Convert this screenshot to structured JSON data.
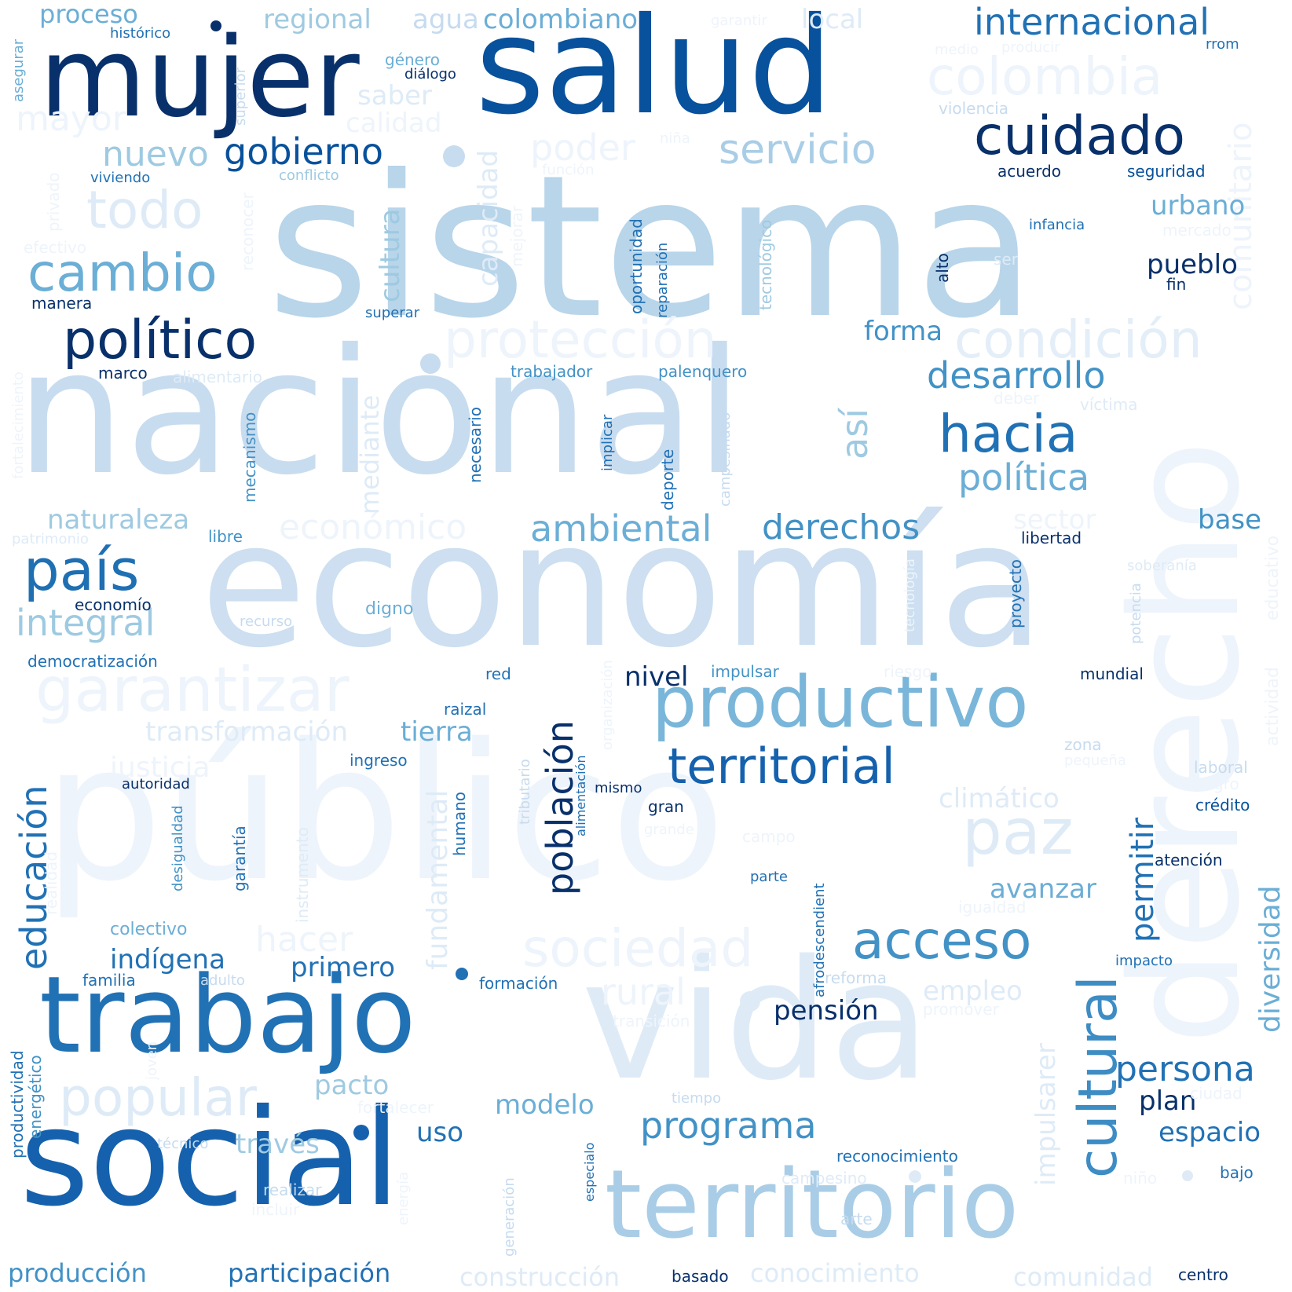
{
  "palette": {
    "darkest": "#08306b",
    "dark": "#08519c",
    "mid_dark": "#2171b5",
    "mid": "#4292c6",
    "light_mid": "#6baed6",
    "light": "#9ecae1",
    "lighter": "#c6dbef",
    "lightest": "#deebf7",
    "faint": "#eef4fb",
    "background": "#ffffff"
  },
  "words": [
    {
      "text": "sistema",
      "weight": 1.0,
      "color": "#b8d5ea"
    },
    {
      "text": "nacional",
      "weight": 0.95,
      "color": "#c8dcef"
    },
    {
      "text": "economía",
      "weight": 0.92,
      "color": "#cddff0"
    },
    {
      "text": "público",
      "weight": 0.9,
      "color": "#eef4fb"
    },
    {
      "text": "vida",
      "weight": 0.85,
      "color": "#deebf7"
    },
    {
      "text": "derecho",
      "weight": 0.82,
      "color": "#eef4fb"
    },
    {
      "text": "salud",
      "weight": 0.8,
      "color": "#08519c"
    },
    {
      "text": "social",
      "weight": 0.78,
      "color": "#1561ad"
    },
    {
      "text": "mujer",
      "weight": 0.7,
      "color": "#08306b"
    },
    {
      "text": "territorio",
      "weight": 0.68,
      "color": "#a9cde6"
    },
    {
      "text": "trabajo",
      "weight": 0.66,
      "color": "#2171b5"
    },
    {
      "text": "productivo",
      "weight": 0.5,
      "color": "#7ab6d9"
    },
    {
      "text": "garantizar",
      "weight": 0.45,
      "color": "#eef4fb"
    },
    {
      "text": "colombia",
      "weight": 0.4,
      "color": "#eef4fb"
    },
    {
      "text": "protección",
      "weight": 0.4,
      "color": "#eef4fb"
    },
    {
      "text": "condición",
      "weight": 0.4,
      "color": "#e3eef8"
    },
    {
      "text": "popular",
      "weight": 0.4,
      "color": "#deebf7"
    },
    {
      "text": "sociedad",
      "weight": 0.4,
      "color": "#eef4fb"
    },
    {
      "text": "territorial",
      "weight": 0.38,
      "color": "#1561ad"
    },
    {
      "text": "cuidado",
      "weight": 0.35,
      "color": "#08306b"
    },
    {
      "text": "político",
      "weight": 0.35,
      "color": "#08306b"
    },
    {
      "text": "cultural",
      "weight": 0.35,
      "color": "#3d8cc4"
    },
    {
      "text": "cambio",
      "weight": 0.35,
      "color": "#6baed6"
    },
    {
      "text": "país",
      "weight": 0.35,
      "color": "#1f6fb3"
    },
    {
      "text": "paz",
      "weight": 0.35,
      "color": "#deebf7"
    },
    {
      "text": "todo",
      "weight": 0.33,
      "color": "#deebf7"
    },
    {
      "text": "acceso",
      "weight": 0.33,
      "color": "#4292c6"
    },
    {
      "text": "hacia",
      "weight": 0.33,
      "color": "#2171b5"
    },
    {
      "text": "servicio",
      "weight": 0.3,
      "color": "#a9cde6"
    },
    {
      "text": "comunitario",
      "weight": 0.25,
      "color": "#eef4fb"
    },
    {
      "text": "educación",
      "weight": 0.25,
      "color": "#2171b5"
    },
    {
      "text": "población",
      "weight": 0.25,
      "color": "#08306b"
    },
    {
      "text": "internacional",
      "weight": 0.25,
      "color": "#2171b5"
    },
    {
      "text": "desarrollo",
      "weight": 0.25,
      "color": "#4292c6"
    },
    {
      "text": "política",
      "weight": 0.25,
      "color": "#6baed6"
    },
    {
      "text": "ambiental",
      "weight": 0.25,
      "color": "#6baed6"
    },
    {
      "text": "derechos",
      "weight": 0.25,
      "color": "#4292c6"
    },
    {
      "text": "gobierno",
      "weight": 0.25,
      "color": "#08519c"
    },
    {
      "text": "económico",
      "weight": 0.25,
      "color": "#eef4fb"
    },
    {
      "text": "programa",
      "weight": 0.25,
      "color": "#4292c6"
    },
    {
      "text": "persona",
      "weight": 0.22,
      "color": "#2171b5"
    },
    {
      "text": "integral",
      "weight": 0.22,
      "color": "#9ecae1"
    },
    {
      "text": "nuevo",
      "weight": 0.22,
      "color": "#9ecae1"
    },
    {
      "text": "poder",
      "weight": 0.22,
      "color": "#eef4fb"
    },
    {
      "text": "rural",
      "weight": 0.22,
      "color": "#eef4fb"
    },
    {
      "text": "hacer",
      "weight": 0.22,
      "color": "#eef4fb"
    },
    {
      "text": "así",
      "weight": 0.22,
      "color": "#9ecae1"
    },
    {
      "text": "permitir",
      "weight": 0.22,
      "color": "#2171b5"
    },
    {
      "text": "diversidad",
      "weight": 0.2,
      "color": "#6baed6"
    },
    {
      "text": "mayor",
      "weight": 0.2,
      "color": "#eef4fb"
    },
    {
      "text": "fundamental",
      "weight": 0.2,
      "color": "#deebf7"
    },
    {
      "text": "impulsarer",
      "weight": 0.2,
      "color": "#deebf7"
    },
    {
      "text": "naturaleza",
      "weight": 0.2,
      "color": "#9ecae1"
    },
    {
      "text": "transformación",
      "weight": 0.2,
      "color": "#deebf7"
    },
    {
      "text": "tierra",
      "weight": 0.2,
      "color": "#6baed6"
    },
    {
      "text": "justicia",
      "weight": 0.2,
      "color": "#eef4fb"
    },
    {
      "text": "cultura",
      "weight": 0.2,
      "color": "#9ecae1"
    },
    {
      "text": "capacidad",
      "weight": 0.2,
      "color": "#deebf7"
    },
    {
      "text": "mediante",
      "weight": 0.2,
      "color": "#deebf7"
    },
    {
      "text": "climático",
      "weight": 0.2,
      "color": "#deebf7"
    },
    {
      "text": "regional",
      "weight": 0.2,
      "color": "#9ecae1"
    },
    {
      "text": "agua",
      "weight": 0.2,
      "color": "#c6dbef"
    },
    {
      "text": "colombiano",
      "weight": 0.2,
      "color": "#6baed6"
    },
    {
      "text": "local",
      "weight": 0.2,
      "color": "#deebf7"
    },
    {
      "text": "proceso",
      "weight": 0.2,
      "color": "#6baed6"
    },
    {
      "text": "saber",
      "weight": 0.2,
      "color": "#deebf7"
    },
    {
      "text": "calidad",
      "weight": 0.2,
      "color": "#eef4fb"
    },
    {
      "text": "urbano",
      "weight": 0.2,
      "color": "#6baed6"
    },
    {
      "text": "pueblo",
      "weight": 0.2,
      "color": "#08306b"
    },
    {
      "text": "forma",
      "weight": 0.2,
      "color": "#4292c6"
    },
    {
      "text": "sector",
      "weight": 0.2,
      "color": "#eef4fb"
    },
    {
      "text": "base",
      "weight": 0.2,
      "color": "#4292c6"
    },
    {
      "text": "nivel",
      "weight": 0.2,
      "color": "#08306b"
    },
    {
      "text": "indígena",
      "weight": 0.2,
      "color": "#2171b5"
    },
    {
      "text": "primero",
      "weight": 0.2,
      "color": "#2171b5"
    },
    {
      "text": "pacto",
      "weight": 0.2,
      "color": "#9ecae1"
    },
    {
      "text": "modelo",
      "weight": 0.2,
      "color": "#6baed6"
    },
    {
      "text": "uso",
      "weight": 0.2,
      "color": "#2171b5"
    },
    {
      "text": "través",
      "weight": 0.2,
      "color": "#9ecae1"
    },
    {
      "text": "avanzar",
      "weight": 0.2,
      "color": "#6baed6"
    },
    {
      "text": "pensión",
      "weight": 0.2,
      "color": "#08306b"
    },
    {
      "text": "empleo",
      "weight": 0.2,
      "color": "#deebf7"
    },
    {
      "text": "plan",
      "weight": 0.2,
      "color": "#08306b"
    },
    {
      "text": "espacio",
      "weight": 0.2,
      "color": "#2171b5"
    },
    {
      "text": "producción",
      "weight": 0.2,
      "color": "#4292c6"
    },
    {
      "text": "participación",
      "weight": 0.2,
      "color": "#2171b5"
    },
    {
      "text": "construcción",
      "weight": 0.2,
      "color": "#deebf7"
    },
    {
      "text": "conocimiento",
      "weight": 0.2,
      "color": "#deebf7"
    },
    {
      "text": "comunidad",
      "weight": 0.2,
      "color": "#deebf7"
    },
    {
      "text": "educativo",
      "weight": 0.12,
      "color": "#eef4fb"
    },
    {
      "text": "actividad",
      "weight": 0.12,
      "color": "#eef4fb"
    },
    {
      "text": "violencia",
      "weight": 0.12,
      "color": "#c6dbef"
    },
    {
      "text": "acuerdo",
      "weight": 0.12,
      "color": "#08306b"
    },
    {
      "text": "seguridad",
      "weight": 0.12,
      "color": "#08519c"
    },
    {
      "text": "infancia",
      "weight": 0.12,
      "color": "#2171b5"
    },
    {
      "text": "mercado",
      "weight": 0.12,
      "color": "#eef4fb"
    },
    {
      "text": "ser",
      "weight": 0.12,
      "color": "#deebf7"
    },
    {
      "text": "fin",
      "weight": 0.12,
      "color": "#08306b"
    },
    {
      "text": "alto",
      "weight": 0.12,
      "color": "#08306b"
    },
    {
      "text": "tecnológico",
      "weight": 0.12,
      "color": "#9ecae1"
    },
    {
      "text": "reparación",
      "weight": 0.12,
      "color": "#2171b5"
    },
    {
      "text": "oportunidad",
      "weight": 0.12,
      "color": "#2171b5"
    },
    {
      "text": "niña",
      "weight": 0.12,
      "color": "#eef4fb"
    },
    {
      "text": "función",
      "weight": 0.12,
      "color": "#eef4fb"
    },
    {
      "text": "mejorar",
      "weight": 0.12,
      "color": "#eef4fb"
    },
    {
      "text": "garantir",
      "weight": 0.12,
      "color": "#eef4fb"
    },
    {
      "text": "medio",
      "weight": 0.12,
      "color": "#eef4fb"
    },
    {
      "text": "producir",
      "weight": 0.12,
      "color": "#eef4fb"
    },
    {
      "text": "rrom",
      "weight": 0.12,
      "color": "#2171b5"
    },
    {
      "text": "histórico",
      "weight": 0.12,
      "color": "#2171b5"
    },
    {
      "text": "género",
      "weight": 0.12,
      "color": "#6baed6"
    },
    {
      "text": "diálogo",
      "weight": 0.12,
      "color": "#08306b"
    },
    {
      "text": "asegurar",
      "weight": 0.12,
      "color": "#6baed6"
    },
    {
      "text": "superior",
      "weight": 0.12,
      "color": "#c6dbef"
    },
    {
      "text": "viviendo",
      "weight": 0.12,
      "color": "#2171b5"
    },
    {
      "text": "conflicto",
      "weight": 0.12,
      "color": "#9ecae1"
    },
    {
      "text": "privado",
      "weight": 0.12,
      "color": "#eef4fb"
    },
    {
      "text": "reconocer",
      "weight": 0.12,
      "color": "#eef4fb"
    },
    {
      "text": "efectivo",
      "weight": 0.12,
      "color": "#eef4fb"
    },
    {
      "text": "manera",
      "weight": 0.12,
      "color": "#08306b"
    },
    {
      "text": "superar",
      "weight": 0.12,
      "color": "#2171b5"
    },
    {
      "text": "marco",
      "weight": 0.12,
      "color": "#08306b"
    },
    {
      "text": "alimentario",
      "weight": 0.12,
      "color": "#deebf7"
    },
    {
      "text": "fortalecimiento",
      "weight": 0.12,
      "color": "#eef4fb"
    },
    {
      "text": "mecanismo",
      "weight": 0.12,
      "color": "#4292c6"
    },
    {
      "text": "necesario",
      "weight": 0.12,
      "color": "#2171b5"
    },
    {
      "text": "trabajador",
      "weight": 0.12,
      "color": "#4292c6"
    },
    {
      "text": "palenquero",
      "weight": 0.12,
      "color": "#4292c6"
    },
    {
      "text": "implicar",
      "weight": 0.12,
      "color": "#2171b5"
    },
    {
      "text": "deporte",
      "weight": 0.12,
      "color": "#2171b5"
    },
    {
      "text": "campesinado",
      "weight": 0.12,
      "color": "#c6dbef"
    },
    {
      "text": "deber",
      "weight": 0.12,
      "color": "#eef4fb"
    },
    {
      "text": "víctima",
      "weight": 0.12,
      "color": "#deebf7"
    },
    {
      "text": "proyecto",
      "weight": 0.12,
      "color": "#2171b5"
    },
    {
      "text": "libertad",
      "weight": 0.12,
      "color": "#08306b"
    },
    {
      "text": "soberanía",
      "weight": 0.12,
      "color": "#deebf7"
    },
    {
      "text": "potencia",
      "weight": 0.12,
      "color": "#c6dbef"
    },
    {
      "text": "patrimonio",
      "weight": 0.12,
      "color": "#deebf7"
    },
    {
      "text": "libre",
      "weight": 0.12,
      "color": "#4292c6"
    },
    {
      "text": "economío",
      "weight": 0.12,
      "color": "#08306b"
    },
    {
      "text": "recurso",
      "weight": 0.12,
      "color": "#c6dbef"
    },
    {
      "text": "digno",
      "weight": 0.12,
      "color": "#6baed6"
    },
    {
      "text": "democratización",
      "weight": 0.12,
      "color": "#2171b5"
    },
    {
      "text": "tecnología",
      "weight": 0.12,
      "color": "#eef4fb"
    },
    {
      "text": "organización",
      "weight": 0.12,
      "color": "#eef4fb"
    },
    {
      "text": "red",
      "weight": 0.12,
      "color": "#2171b5"
    },
    {
      "text": "impulsar",
      "weight": 0.12,
      "color": "#4292c6"
    },
    {
      "text": "riesgo",
      "weight": 0.12,
      "color": "#eef4fb"
    },
    {
      "text": "mundial",
      "weight": 0.12,
      "color": "#08306b"
    },
    {
      "text": "raizal",
      "weight": 0.12,
      "color": "#2171b5"
    },
    {
      "text": "ingreso",
      "weight": 0.12,
      "color": "#2171b5"
    },
    {
      "text": "tributario",
      "weight": 0.12,
      "color": "#c6dbef"
    },
    {
      "text": "alimentación",
      "weight": 0.12,
      "color": "#2171b5"
    },
    {
      "text": "zona",
      "weight": 0.12,
      "color": "#c6dbef"
    },
    {
      "text": "pequeña",
      "weight": 0.12,
      "color": "#eef4fb"
    },
    {
      "text": "laboral",
      "weight": 0.12,
      "color": "#c6dbef"
    },
    {
      "text": "negro",
      "weight": 0.12,
      "color": "#eef4fb"
    },
    {
      "text": "crédito",
      "weight": 0.12,
      "color": "#08519c"
    },
    {
      "text": "autoridad",
      "weight": 0.12,
      "color": "#08306b"
    },
    {
      "text": "mismo",
      "weight": 0.12,
      "color": "#08306b"
    },
    {
      "text": "gran",
      "weight": 0.12,
      "color": "#08306b"
    },
    {
      "text": "grande",
      "weight": 0.12,
      "color": "#eef4fb"
    },
    {
      "text": "campo",
      "weight": 0.12,
      "color": "#eef4fb"
    },
    {
      "text": "apoyo",
      "weight": 0.12,
      "color": "#eef4fb"
    },
    {
      "text": "parte",
      "weight": 0.12,
      "color": "#2171b5"
    },
    {
      "text": "atención",
      "weight": 0.12,
      "color": "#08306b"
    },
    {
      "text": "igualdad",
      "weight": 0.12,
      "color": "#eef4fb"
    },
    {
      "text": "desigualdad",
      "weight": 0.12,
      "color": "#4292c6"
    },
    {
      "text": "garantía",
      "weight": 0.12,
      "color": "#2171b5"
    },
    {
      "text": "instrumento",
      "weight": 0.12,
      "color": "#deebf7"
    },
    {
      "text": "humano",
      "weight": 0.12,
      "color": "#2171b5"
    },
    {
      "text": "realidad",
      "weight": 0.12,
      "color": "#eef4fb"
    },
    {
      "text": "afrodescendient",
      "weight": 0.12,
      "color": "#2171b5"
    },
    {
      "text": "colectivo",
      "weight": 0.12,
      "color": "#6baed6"
    },
    {
      "text": "impacto",
      "weight": 0.12,
      "color": "#2171b5"
    },
    {
      "text": "familia",
      "weight": 0.12,
      "color": "#2171b5"
    },
    {
      "text": "adulto",
      "weight": 0.12,
      "color": "#c6dbef"
    },
    {
      "text": "formación",
      "weight": 0.12,
      "color": "#2171b5"
    },
    {
      "text": "reforma",
      "weight": 0.12,
      "color": "#c6dbef"
    },
    {
      "text": "promover",
      "weight": 0.12,
      "color": "#eef4fb"
    },
    {
      "text": "transición",
      "weight": 0.12,
      "color": "#eef4fb"
    },
    {
      "text": "productividad",
      "weight": 0.12,
      "color": "#2171b5"
    },
    {
      "text": "energético",
      "weight": 0.12,
      "color": "#4292c6"
    },
    {
      "text": "joven",
      "weight": 0.12,
      "color": "#eef4fb"
    },
    {
      "text": "fortalecer",
      "weight": 0.12,
      "color": "#eef4fb"
    },
    {
      "text": "tiempo",
      "weight": 0.12,
      "color": "#c6dbef"
    },
    {
      "text": "ciudad",
      "weight": 0.12,
      "color": "#eef4fb"
    },
    {
      "text": "técnico",
      "weight": 0.12,
      "color": "#c6dbef"
    },
    {
      "text": "reconocimiento",
      "weight": 0.12,
      "color": "#2171b5"
    },
    {
      "text": "campesino",
      "weight": 0.12,
      "color": "#deebf7"
    },
    {
      "text": "niño",
      "weight": 0.12,
      "color": "#eef4fb"
    },
    {
      "text": "bajo",
      "weight": 0.12,
      "color": "#2171b5"
    },
    {
      "text": "realizar",
      "weight": 0.12,
      "color": "#c6dbef"
    },
    {
      "text": "incluir",
      "weight": 0.12,
      "color": "#eef4fb"
    },
    {
      "text": "energía",
      "weight": 0.12,
      "color": "#eef4fb"
    },
    {
      "text": "generación",
      "weight": 0.12,
      "color": "#c6dbef"
    },
    {
      "text": "especialo",
      "weight": 0.12,
      "color": "#2171b5"
    },
    {
      "text": "arte",
      "weight": 0.12,
      "color": "#c6dbef"
    },
    {
      "text": "basado",
      "weight": 0.12,
      "color": "#08306b"
    },
    {
      "text": "centro",
      "weight": 0.12,
      "color": "#08306b"
    }
  ]
}
